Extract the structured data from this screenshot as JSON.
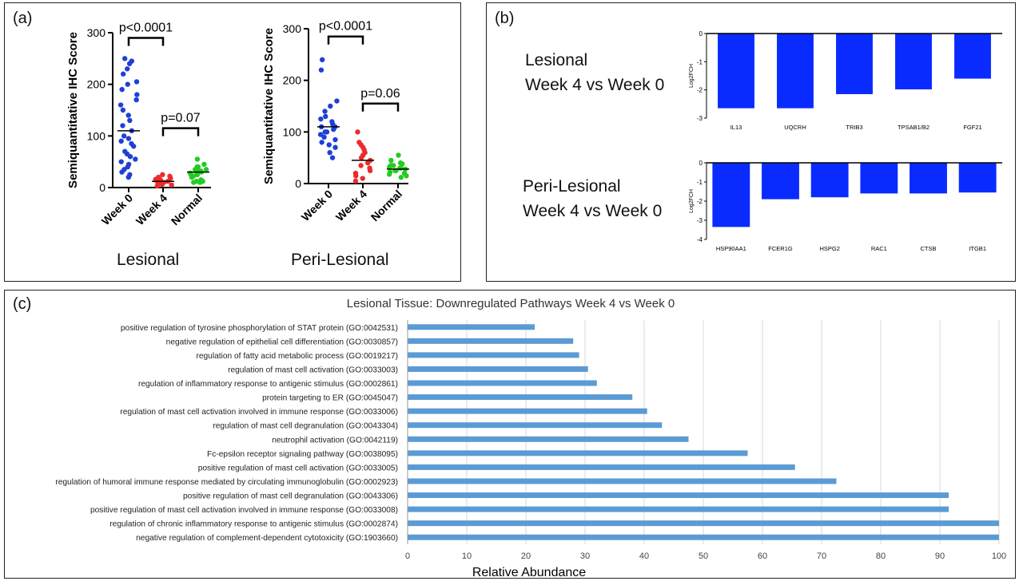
{
  "panel_a": {
    "label": "(a)",
    "lesional_title": "Lesional",
    "peri_title": "Peri-Lesional"
  },
  "panel_b": {
    "label": "(b)",
    "lesional_text": [
      "Lesional",
      "Week 4 vs Week 0"
    ],
    "peri_text": [
      "Peri-Lesional",
      "Week 4 vs Week 0"
    ]
  },
  "panel_c": {
    "label": "(c)",
    "title": "Lesional Tissue: Downregulated Pathways Week 4 vs Week 0"
  },
  "colors": {
    "week0": "#1f3fd6",
    "week4": "#ee2a2a",
    "normal": "#22cc22",
    "bar_b": "#0a2bff",
    "bar_c": "#5b9bd5",
    "grid": "#d9d9d9"
  },
  "chart_data": [
    {
      "type": "scatter",
      "panel": "a-lesional",
      "ylabel": "Semiquantitative  IHC Score",
      "categories": [
        "Week 0",
        "Week 4",
        "Normal"
      ],
      "ylim": [
        0,
        300
      ],
      "yticks": [
        0,
        100,
        200,
        300
      ],
      "medians": [
        110,
        12,
        30
      ],
      "annotations": [
        "p<0.0001",
        "p=0.07"
      ],
      "series": [
        {
          "category": "Week 0",
          "values": [
            20,
            25,
            30,
            35,
            40,
            45,
            50,
            55,
            60,
            65,
            70,
            80,
            85,
            90,
            95,
            100,
            110,
            120,
            130,
            140,
            150,
            160,
            170,
            180,
            190,
            200,
            205,
            220,
            230,
            240,
            245,
            250
          ]
        },
        {
          "category": "Week 4",
          "values": [
            3,
            5,
            6,
            8,
            10,
            10,
            12,
            12,
            14,
            15,
            16,
            18,
            20,
            22,
            25
          ]
        },
        {
          "category": "Normal",
          "values": [
            10,
            10,
            12,
            12,
            15,
            20,
            22,
            25,
            25,
            28,
            30,
            30,
            32,
            35,
            35,
            38,
            40,
            40,
            45,
            55
          ]
        }
      ]
    },
    {
      "type": "scatter",
      "panel": "a-peri",
      "ylabel": "Semiquantitative  IHC Score",
      "categories": [
        "Week 0",
        "Week 4",
        "Normal"
      ],
      "ylim": [
        0,
        300
      ],
      "yticks": [
        0,
        100,
        200,
        300
      ],
      "medians": [
        110,
        45,
        28
      ],
      "annotations": [
        "p<0.0001",
        "p=0.06"
      ],
      "series": [
        {
          "category": "Week 0",
          "values": [
            50,
            60,
            70,
            75,
            80,
            85,
            90,
            95,
            100,
            100,
            105,
            110,
            110,
            115,
            120,
            125,
            130,
            140,
            150,
            160,
            220,
            240
          ]
        },
        {
          "category": "Week 4",
          "values": [
            5,
            10,
            15,
            20,
            25,
            30,
            35,
            40,
            45,
            50,
            55,
            60,
            65,
            70,
            75,
            80,
            100
          ]
        },
        {
          "category": "Normal",
          "values": [
            12,
            15,
            18,
            20,
            22,
            25,
            25,
            28,
            30,
            30,
            32,
            35,
            35,
            38,
            40,
            45,
            55
          ]
        }
      ]
    },
    {
      "type": "bar",
      "panel": "b-lesional",
      "ylabel": "Log2FCH",
      "categories": [
        "IL13",
        "UQCRH",
        "TRIB3",
        "TPSAB1/B2",
        "FGF21"
      ],
      "values": [
        -2.65,
        -2.65,
        -2.15,
        -1.98,
        -1.6
      ],
      "ylim": [
        -3,
        0
      ],
      "yticks": [
        0,
        -1,
        -2,
        -3
      ]
    },
    {
      "type": "bar",
      "panel": "b-peri",
      "ylabel": "Log2FCH",
      "categories": [
        "HSP90AA1",
        "FCER1G",
        "HSPG2",
        "RAC1",
        "CTSB",
        "ITGB1"
      ],
      "values": [
        -3.35,
        -1.9,
        -1.8,
        -1.6,
        -1.6,
        -1.55
      ],
      "ylim": [
        -4,
        0
      ],
      "yticks": [
        0,
        -1,
        -2,
        -3,
        -4
      ]
    },
    {
      "type": "bar",
      "panel": "c",
      "orientation": "horizontal",
      "title": "Lesional Tissue: Downregulated Pathways Week 4 vs Week 0",
      "xlabel": "Relative Abundance",
      "xlim": [
        0,
        100
      ],
      "xticks": [
        0,
        10,
        20,
        30,
        40,
        50,
        60,
        70,
        80,
        90,
        100
      ],
      "grid": true,
      "categories": [
        "positive regulation of tyrosine phosphorylation of STAT protein (GO:0042531)",
        "negative regulation of epithelial cell differentiation (GO:0030857)",
        "regulation of fatty acid metabolic process (GO:0019217)",
        "regulation of mast cell activation (GO:0033003)",
        "regulation of inflammatory response to antigenic stimulus (GO:0002861)",
        "protein targeting to ER (GO:0045047)",
        "regulation of mast cell activation involved in immune response (GO:0033006)",
        "regulation of mast cell degranulation (GO:0043304)",
        "neutrophil activation (GO:0042119)",
        "Fc-epsilon receptor signaling pathway (GO:0038095)",
        "positive regulation of mast cell activation (GO:0033005)",
        "regulation of humoral immune response mediated by circulating immunoglobulin (GO:0002923)",
        "positive regulation of mast cell degranulation (GO:0043306)",
        "positive regulation of mast cell activation involved in immune response (GO:0033008)",
        "regulation of chronic inflammatory response to antigenic stimulus (GO:0002874)",
        "negative regulation of complement-dependent cytotoxicity (GO:1903660)"
      ],
      "values": [
        21.5,
        28,
        29,
        30.5,
        32,
        38,
        40.5,
        43,
        47.5,
        57.5,
        65.5,
        72.5,
        91.5,
        91.5,
        100,
        100
      ]
    }
  ]
}
